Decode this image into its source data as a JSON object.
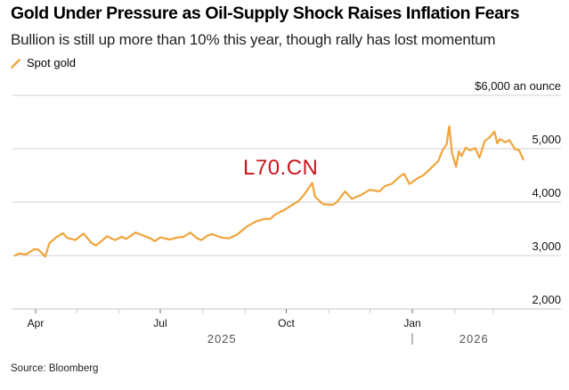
{
  "header": {
    "title": "Gold Under Pressure as Oil-Supply Shock Raises Inflation Fears",
    "subtitle": "Bullion is still up more than 10% this year, though rally has lost momentum"
  },
  "legend": {
    "label": "Spot gold",
    "icon": "diagonal-line-icon"
  },
  "watermark": "L70.CN",
  "footer": {
    "source": "Source: Bloomberg"
  },
  "colors": {
    "series": "#f0a43a",
    "grid": "#d0d0d0",
    "watermark": "#c8161d"
  },
  "chart_data": {
    "type": "line",
    "title": "Gold Under Pressure as Oil-Supply Shock Raises Inflation Fears",
    "subtitle": "Bullion is still up more than 10% this year, though rally has lost momentum",
    "xlabel": "",
    "ylabel": "$ an ounce",
    "y_unit_label": "$6,000 an ounce",
    "ylim": [
      2000,
      6000
    ],
    "yticks": [
      2000,
      3000,
      4000,
      5000,
      6000
    ],
    "ytick_labels": [
      "2,000",
      "3,000",
      "4,000",
      "5,000",
      "$6,000 an ounce"
    ],
    "xlim": [
      "2025-03-15",
      "2026-03-31"
    ],
    "xticks": [
      {
        "date": "2025-04-01",
        "label": "Apr",
        "major": true
      },
      {
        "date": "2025-05-01",
        "label": "",
        "major": false
      },
      {
        "date": "2025-06-01",
        "label": "",
        "major": false
      },
      {
        "date": "2025-07-01",
        "label": "Jul",
        "major": true
      },
      {
        "date": "2025-08-01",
        "label": "",
        "major": false
      },
      {
        "date": "2025-09-01",
        "label": "",
        "major": false
      },
      {
        "date": "2025-10-01",
        "label": "Oct",
        "major": true
      },
      {
        "date": "2025-11-01",
        "label": "",
        "major": false
      },
      {
        "date": "2025-12-01",
        "label": "",
        "major": false
      },
      {
        "date": "2026-01-01",
        "label": "Jan",
        "major": true
      },
      {
        "date": "2026-02-01",
        "label": "",
        "major": false
      },
      {
        "date": "2026-03-01",
        "label": "",
        "major": false
      }
    ],
    "year_labels": [
      {
        "label": "2025",
        "date": "2025-08-15"
      },
      {
        "label": "2026",
        "date": "2026-02-15"
      }
    ],
    "year_divider": "2026-01-01",
    "grid": true,
    "legend_position": "top-left",
    "series": [
      {
        "name": "Spot gold",
        "points": [
          [
            "2025-03-17",
            3000
          ],
          [
            "2025-03-20",
            3040
          ],
          [
            "2025-03-25",
            3020
          ],
          [
            "2025-03-31",
            3120
          ],
          [
            "2025-04-03",
            3110
          ],
          [
            "2025-04-08",
            2980
          ],
          [
            "2025-04-11",
            3230
          ],
          [
            "2025-04-16",
            3340
          ],
          [
            "2025-04-21",
            3420
          ],
          [
            "2025-04-24",
            3330
          ],
          [
            "2025-04-30",
            3290
          ],
          [
            "2025-05-06",
            3410
          ],
          [
            "2025-05-12",
            3230
          ],
          [
            "2025-05-15",
            3190
          ],
          [
            "2025-05-20",
            3290
          ],
          [
            "2025-05-23",
            3360
          ],
          [
            "2025-05-29",
            3290
          ],
          [
            "2025-06-03",
            3350
          ],
          [
            "2025-06-06",
            3310
          ],
          [
            "2025-06-13",
            3430
          ],
          [
            "2025-06-17",
            3390
          ],
          [
            "2025-06-24",
            3320
          ],
          [
            "2025-06-27",
            3270
          ],
          [
            "2025-07-01",
            3340
          ],
          [
            "2025-07-08",
            3300
          ],
          [
            "2025-07-14",
            3340
          ],
          [
            "2025-07-18",
            3350
          ],
          [
            "2025-07-23",
            3430
          ],
          [
            "2025-07-28",
            3320
          ],
          [
            "2025-07-31",
            3290
          ],
          [
            "2025-08-05",
            3380
          ],
          [
            "2025-08-08",
            3400
          ],
          [
            "2025-08-14",
            3340
          ],
          [
            "2025-08-20",
            3320
          ],
          [
            "2025-08-26",
            3390
          ],
          [
            "2025-09-02",
            3540
          ],
          [
            "2025-09-09",
            3640
          ],
          [
            "2025-09-16",
            3690
          ],
          [
            "2025-09-19",
            3680
          ],
          [
            "2025-09-23",
            3770
          ],
          [
            "2025-09-30",
            3860
          ],
          [
            "2025-10-06",
            3960
          ],
          [
            "2025-10-10",
            4020
          ],
          [
            "2025-10-14",
            4140
          ],
          [
            "2025-10-17",
            4250
          ],
          [
            "2025-10-20",
            4360
          ],
          [
            "2025-10-22",
            4100
          ],
          [
            "2025-10-28",
            3960
          ],
          [
            "2025-11-04",
            3950
          ],
          [
            "2025-11-07",
            4000
          ],
          [
            "2025-11-13",
            4200
          ],
          [
            "2025-11-18",
            4060
          ],
          [
            "2025-11-25",
            4140
          ],
          [
            "2025-12-01",
            4230
          ],
          [
            "2025-12-08",
            4200
          ],
          [
            "2025-12-12",
            4300
          ],
          [
            "2025-12-17",
            4340
          ],
          [
            "2025-12-23",
            4480
          ],
          [
            "2025-12-26",
            4530
          ],
          [
            "2025-12-30",
            4340
          ],
          [
            "2026-01-05",
            4450
          ],
          [
            "2026-01-09",
            4500
          ],
          [
            "2026-01-14",
            4620
          ],
          [
            "2026-01-20",
            4770
          ],
          [
            "2026-01-23",
            4960
          ],
          [
            "2026-01-26",
            5080
          ],
          [
            "2026-01-28",
            5420
          ],
          [
            "2026-01-30",
            4920
          ],
          [
            "2026-02-02",
            4660
          ],
          [
            "2026-02-04",
            4950
          ],
          [
            "2026-02-06",
            4860
          ],
          [
            "2026-02-09",
            5020
          ],
          [
            "2026-02-12",
            4970
          ],
          [
            "2026-02-16",
            5010
          ],
          [
            "2026-02-19",
            4830
          ],
          [
            "2026-02-23",
            5150
          ],
          [
            "2026-02-26",
            5200
          ],
          [
            "2026-03-02",
            5320
          ],
          [
            "2026-03-04",
            5100
          ],
          [
            "2026-03-06",
            5180
          ],
          [
            "2026-03-10",
            5120
          ],
          [
            "2026-03-13",
            5160
          ],
          [
            "2026-03-17",
            4990
          ],
          [
            "2026-03-20",
            4970
          ],
          [
            "2026-03-23",
            4800
          ]
        ]
      }
    ]
  }
}
